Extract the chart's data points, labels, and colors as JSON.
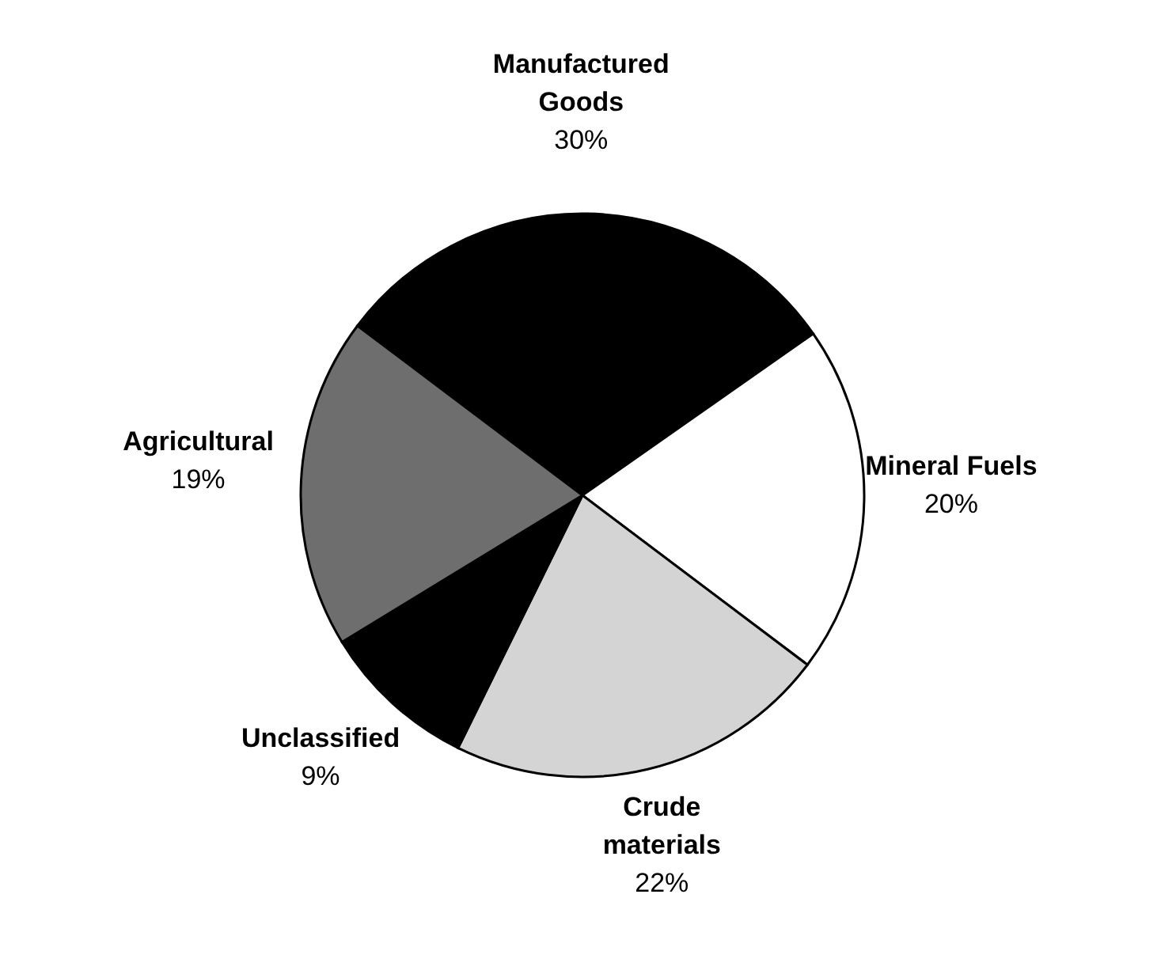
{
  "chart_data": {
    "type": "pie",
    "categories": [
      "Manufactured Goods",
      "Mineral Fuels",
      "Crude materials",
      "Unclassified",
      "Agricultural"
    ],
    "values": [
      30,
      20,
      22,
      9,
      19
    ],
    "colors": [
      "#000000",
      "#ffffff",
      "#d4d4d4",
      "#000000",
      "#6e6e6e"
    ],
    "value_labels": [
      "30%",
      "20%",
      "22%",
      "9%",
      "19%"
    ]
  }
}
